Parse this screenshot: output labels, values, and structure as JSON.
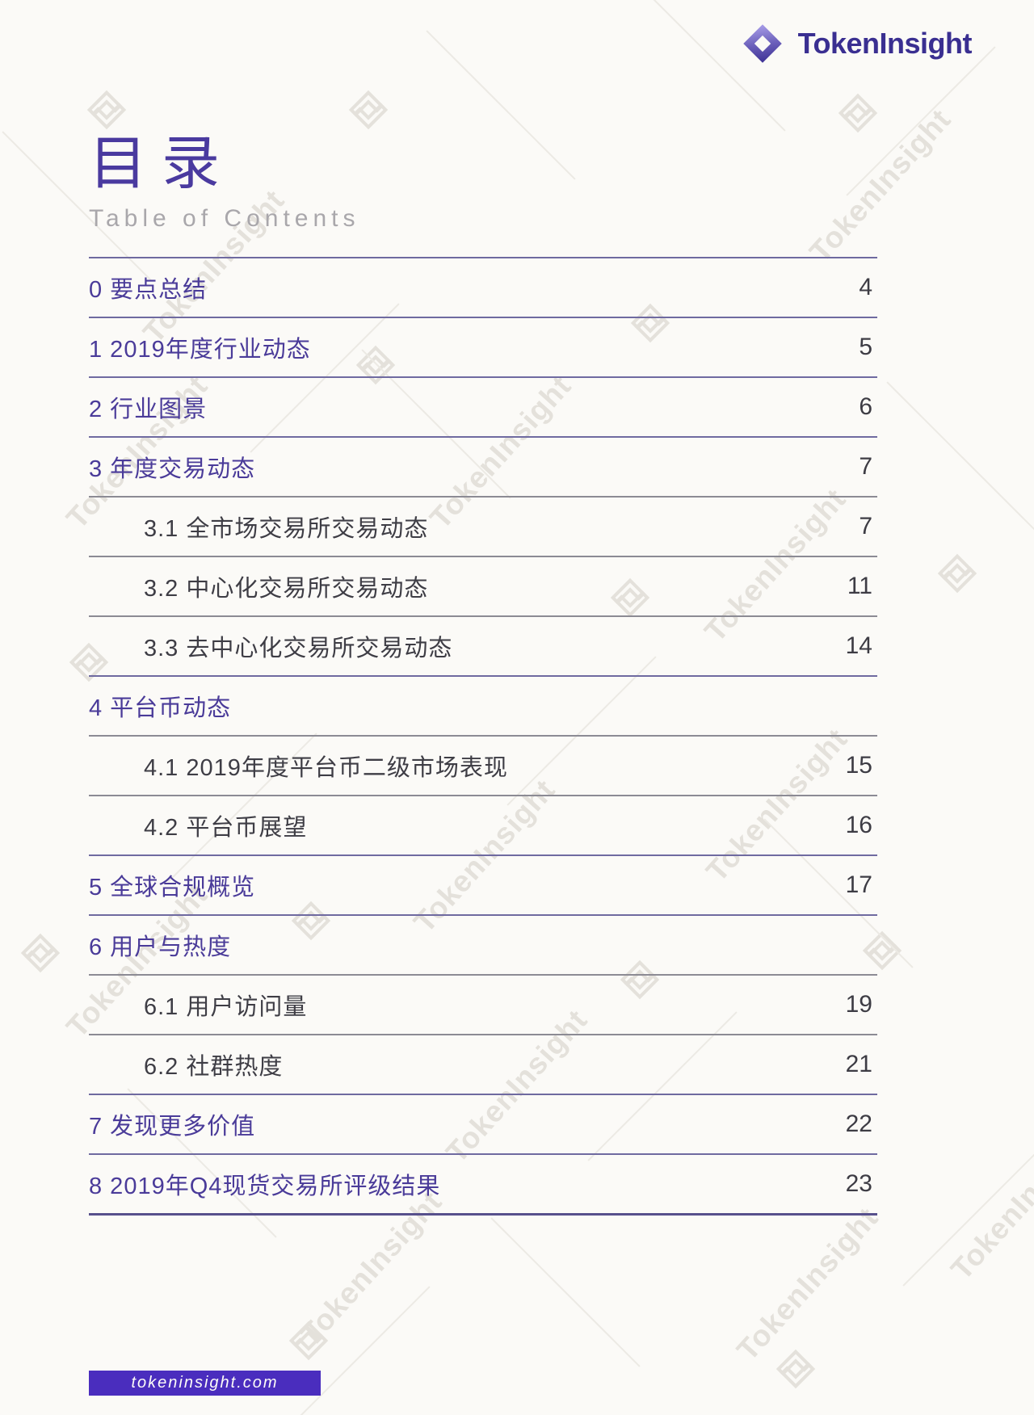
{
  "header": {
    "brand": "TokenInsight"
  },
  "title": {
    "zh": "目录",
    "en": "Table of Contents"
  },
  "watermark": {
    "text": "TokenInsight"
  },
  "footer": {
    "website": "tokeninsight.com"
  },
  "colors": {
    "brand_purple": "#3a2f91",
    "toc_item_purple": "#4a3b99",
    "footer_bar_purple": "#4a2dbe",
    "separator_line": "#6f6aa0"
  },
  "toc": {
    "items": [
      {
        "label": "0 要点总结",
        "page": "4",
        "level": 1
      },
      {
        "label": "1 2019年度行业动态",
        "page": "5",
        "level": 1
      },
      {
        "label": "2 行业图景",
        "page": "6",
        "level": 1
      },
      {
        "label": "3 年度交易动态",
        "page": "7",
        "level": 1
      },
      {
        "label": "3.1 全市场交易所交易动态",
        "page": "7",
        "level": 2
      },
      {
        "label": "3.2 中心化交易所交易动态",
        "page": "11",
        "level": 2
      },
      {
        "label": "3.3 去中心化交易所交易动态",
        "page": "14",
        "level": 2
      },
      {
        "label": "4 平台币动态",
        "page": "",
        "level": 1
      },
      {
        "label": "4.1 2019年度平台币二级市场表现",
        "page": "15",
        "level": 2
      },
      {
        "label": "4.2 平台币展望",
        "page": "16",
        "level": 2
      },
      {
        "label": "5 全球合规概览",
        "page": "17",
        "level": 1
      },
      {
        "label": "6 用户与热度",
        "page": "",
        "level": 1
      },
      {
        "label": "6.1 用户访问量",
        "page": "19",
        "level": 2
      },
      {
        "label": "6.2 社群热度",
        "page": "21",
        "level": 2
      },
      {
        "label": "7 发现更多价值",
        "page": "22",
        "level": 1
      },
      {
        "label": "8 2019年Q4现货交易所评级结果",
        "page": "23",
        "level": 1
      }
    ]
  }
}
